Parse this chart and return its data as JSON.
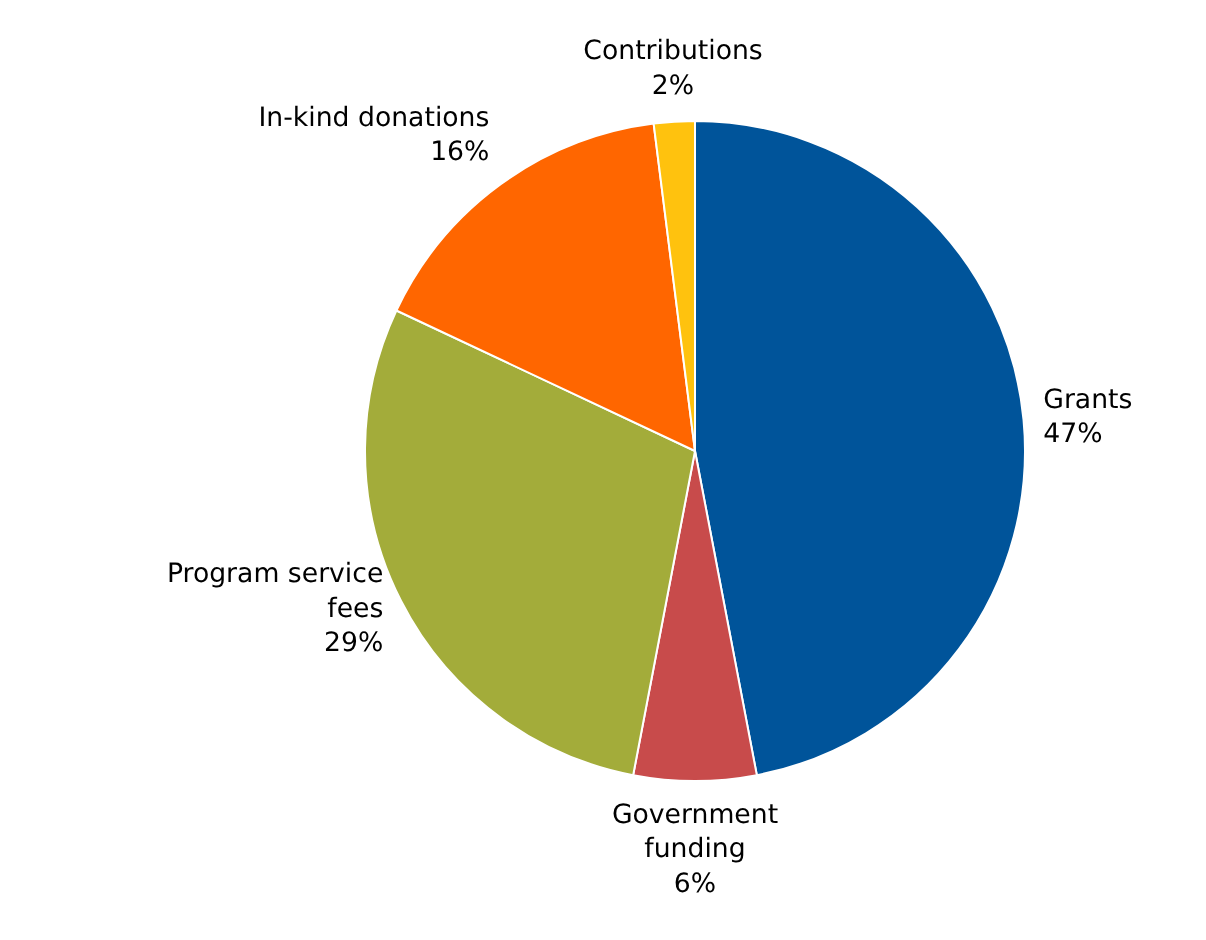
{
  "chart_data": {
    "type": "pie",
    "categories": [
      "Grants",
      "Government funding",
      "Program service fees",
      "In-kind donations",
      "Contributions"
    ],
    "values": [
      47,
      6,
      29,
      16,
      2
    ],
    "colors": [
      "#00549a",
      "#c84b4b",
      "#a3ac3a",
      "#ff6600",
      "#ffc20e"
    ],
    "value_labels": [
      "47%",
      "6%",
      "29%",
      "16%",
      "2%"
    ]
  }
}
